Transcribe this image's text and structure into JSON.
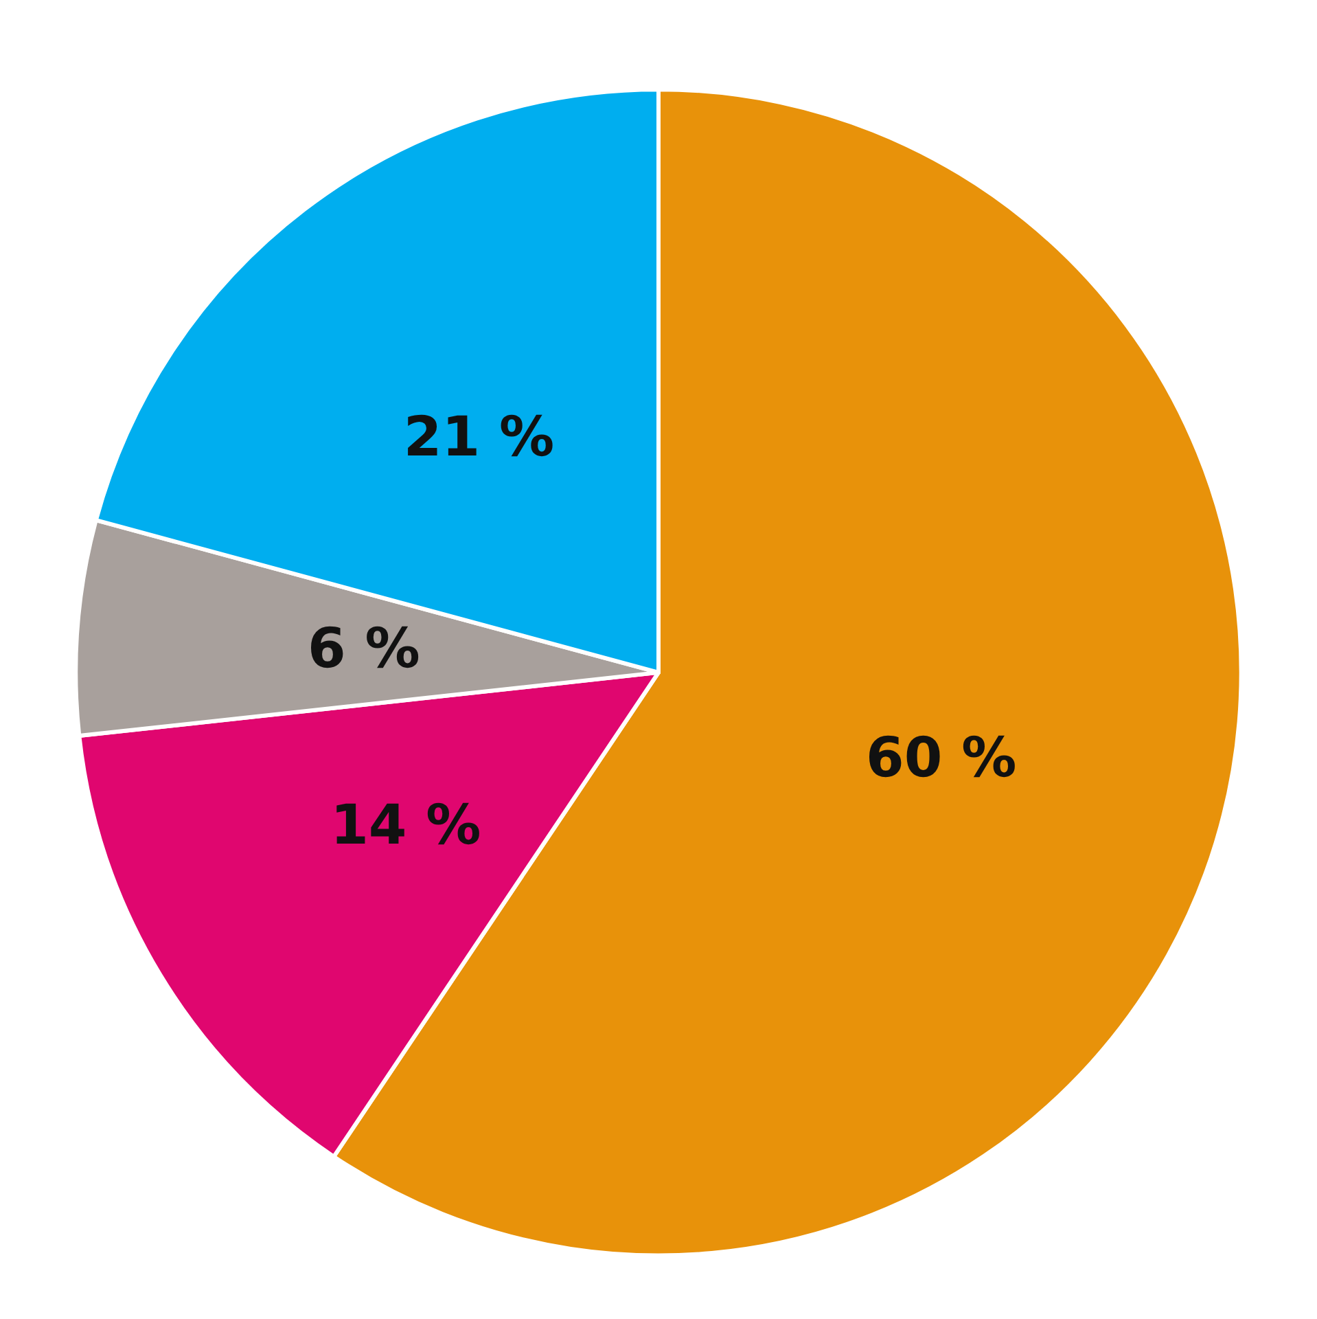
{
  "chart_data": {
    "type": "pie",
    "categories": [
      null,
      null,
      null,
      null
    ],
    "values": [
      60,
      14,
      6,
      21
    ],
    "value_labels": [
      "60 %",
      "14 %",
      "6 %",
      "21 %"
    ],
    "colors": [
      "#e8920a",
      "#e0066f",
      "#a8a09c",
      "#00aeef"
    ]
  }
}
